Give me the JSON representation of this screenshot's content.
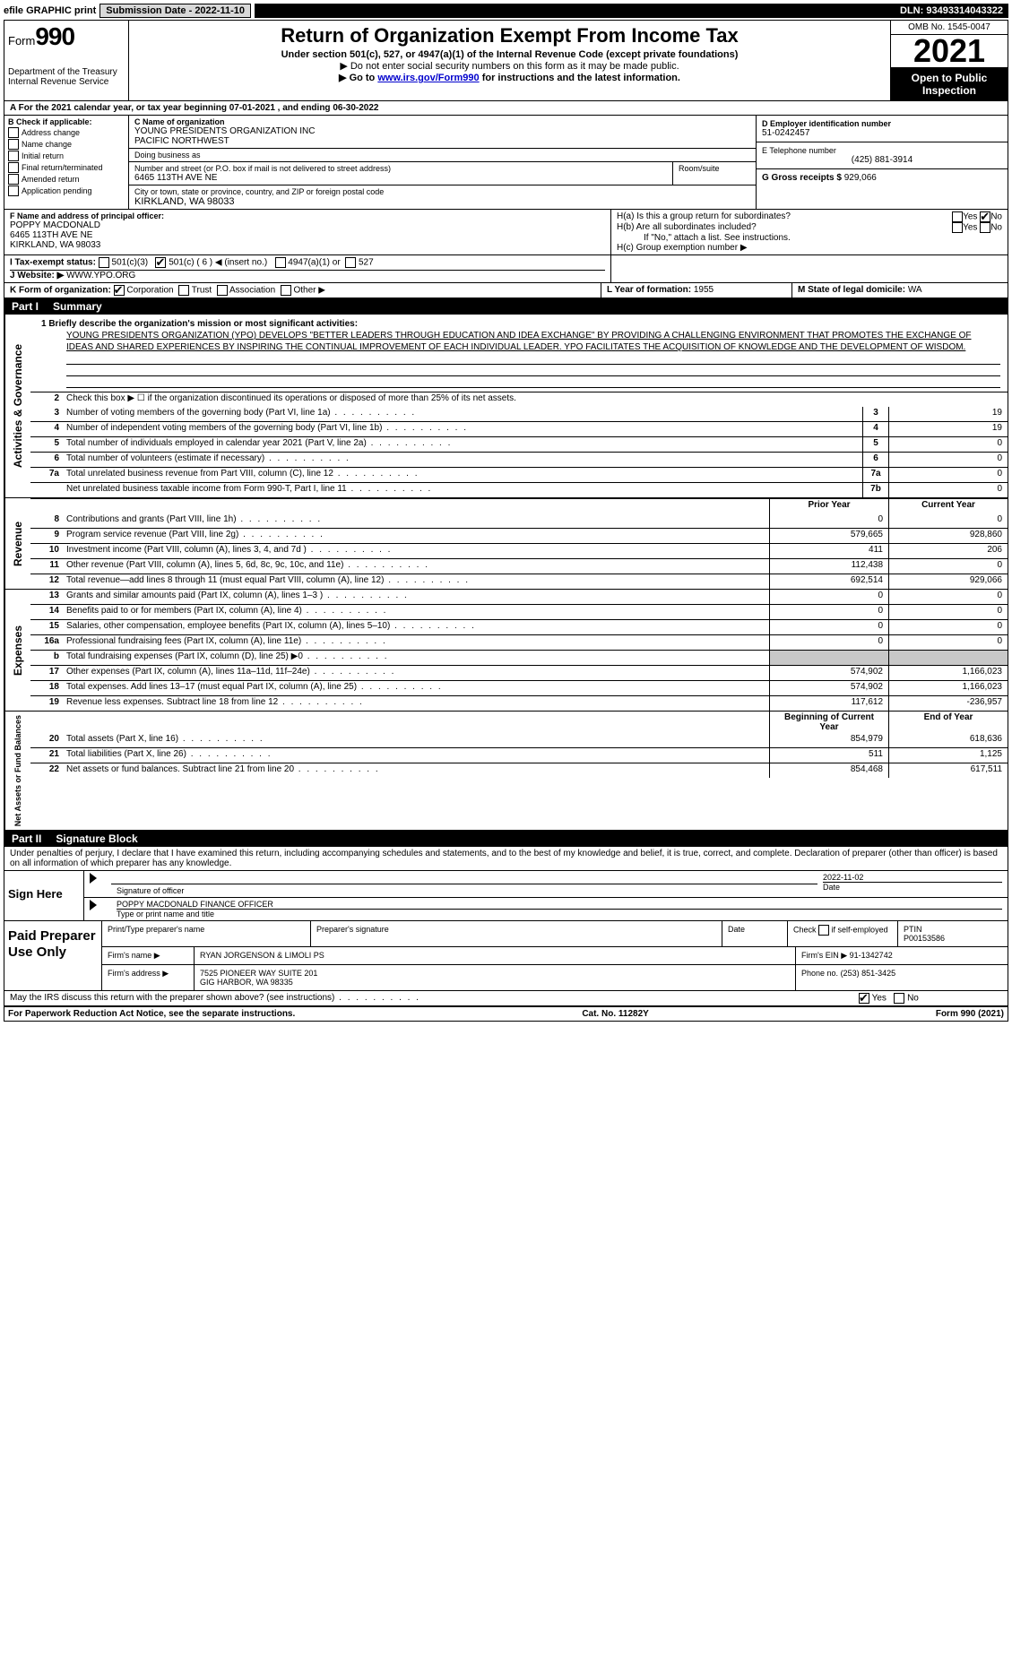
{
  "topbar": {
    "efile": "efile GRAPHIC print",
    "submission_label": "Submission Date - 2022-11-10",
    "dln": "DLN: 93493314043322"
  },
  "header": {
    "form_label": "Form",
    "form_number": "990",
    "title": "Return of Organization Exempt From Income Tax",
    "subtitle1": "Under section 501(c), 527, or 4947(a)(1) of the Internal Revenue Code (except private foundations)",
    "subtitle2": "▶ Do not enter social security numbers on this form as it may be made public.",
    "subtitle3_pre": "▶ Go to ",
    "subtitle3_link": "www.irs.gov/Form990",
    "subtitle3_post": " for instructions and the latest information.",
    "dept": "Department of the Treasury\nInternal Revenue Service",
    "omb": "OMB No. 1545-0047",
    "year": "2021",
    "open": "Open to Public Inspection"
  },
  "row_a": "A For the 2021 calendar year, or tax year beginning 07-01-2021    , and ending 06-30-2022",
  "box_b": {
    "title": "B Check if applicable:",
    "items": [
      "Address change",
      "Name change",
      "Initial return",
      "Final return/terminated",
      "Amended return",
      "Application pending"
    ]
  },
  "box_c": {
    "label_name": "C Name of organization",
    "name": "YOUNG PRESIDENTS ORGANIZATION INC\nPACIFIC NORTHWEST",
    "dba_label": "Doing business as",
    "street_label": "Number and street (or P.O. box if mail is not delivered to street address)",
    "room_label": "Room/suite",
    "street": "6465 113TH AVE NE",
    "city_label": "City or town, state or province, country, and ZIP or foreign postal code",
    "city": "KIRKLAND, WA  98033"
  },
  "box_d": {
    "label": "D Employer identification number",
    "value": "51-0242457"
  },
  "box_e": {
    "label": "E Telephone number",
    "value": "(425) 881-3914"
  },
  "box_g": {
    "label": "G Gross receipts $",
    "value": "929,066"
  },
  "box_f": {
    "label": "F Name and address of principal officer:",
    "name": "POPPY MACDONALD",
    "addr1": "6465 113TH AVE NE",
    "addr2": "KIRKLAND, WA  98033"
  },
  "box_h": {
    "a_label": "H(a)  Is this a group return for subordinates?",
    "b_label": "H(b)  Are all subordinates included?",
    "b_note": "If \"No,\" attach a list. See instructions.",
    "c_label": "H(c)  Group exemption number ▶",
    "yes": "Yes",
    "no": "No"
  },
  "row_i": {
    "label": "I  Tax-exempt status:",
    "opt1": "501(c)(3)",
    "opt2": "501(c) ( 6 ) ◀ (insert no.)",
    "opt3": "4947(a)(1) or",
    "opt4": "527"
  },
  "row_j": {
    "label": "J  Website: ▶",
    "value": "WWW.YPO.ORG"
  },
  "row_k": {
    "label": "K Form of organization:",
    "opts": [
      "Corporation",
      "Trust",
      "Association",
      "Other ▶"
    ]
  },
  "row_l": {
    "label": "L Year of formation:",
    "value": "1955"
  },
  "row_m": {
    "label": "M State of legal domicile:",
    "value": "WA"
  },
  "part1": {
    "num": "Part I",
    "title": "Summary"
  },
  "mission": {
    "label": "1  Briefly describe the organization's mission or most significant activities:",
    "text": "YOUNG PRESIDENTS ORGANIZATION (YPO) DEVELOPS \"BETTER LEADERS THROUGH EDUCATION AND IDEA EXCHANGE\" BY PROVIDING A CHALLENGING ENVIRONMENT THAT PROMOTES THE EXCHANGE OF IDEAS AND SHARED EXPERIENCES BY INSPIRING THE CONTINUAL IMPROVEMENT OF EACH INDIVIDUAL LEADER. YPO FACILITATES THE ACQUISITION OF KNOWLEDGE AND THE DEVELOPMENT OF WISDOM."
  },
  "governance": {
    "side": "Activities & Governance",
    "line2": "Check this box ▶ ☐ if the organization discontinued its operations or disposed of more than 25% of its net assets.",
    "rows": [
      {
        "n": "3",
        "label": "Number of voting members of the governing body (Part VI, line 1a)",
        "box": "3",
        "val": "19"
      },
      {
        "n": "4",
        "label": "Number of independent voting members of the governing body (Part VI, line 1b)",
        "box": "4",
        "val": "19"
      },
      {
        "n": "5",
        "label": "Total number of individuals employed in calendar year 2021 (Part V, line 2a)",
        "box": "5",
        "val": "0"
      },
      {
        "n": "6",
        "label": "Total number of volunteers (estimate if necessary)",
        "box": "6",
        "val": "0"
      },
      {
        "n": "7a",
        "label": "Total unrelated business revenue from Part VIII, column (C), line 12",
        "box": "7a",
        "val": "0"
      },
      {
        "n": "",
        "label": "Net unrelated business taxable income from Form 990-T, Part I, line 11",
        "box": "7b",
        "val": "0"
      }
    ]
  },
  "two_col_header": {
    "prior": "Prior Year",
    "current": "Current Year"
  },
  "revenue": {
    "side": "Revenue",
    "rows": [
      {
        "n": "8",
        "label": "Contributions and grants (Part VIII, line 1h)",
        "prior": "0",
        "curr": "0"
      },
      {
        "n": "9",
        "label": "Program service revenue (Part VIII, line 2g)",
        "prior": "579,665",
        "curr": "928,860"
      },
      {
        "n": "10",
        "label": "Investment income (Part VIII, column (A), lines 3, 4, and 7d )",
        "prior": "411",
        "curr": "206"
      },
      {
        "n": "11",
        "label": "Other revenue (Part VIII, column (A), lines 5, 6d, 8c, 9c, 10c, and 11e)",
        "prior": "112,438",
        "curr": "0"
      },
      {
        "n": "12",
        "label": "Total revenue—add lines 8 through 11 (must equal Part VIII, column (A), line 12)",
        "prior": "692,514",
        "curr": "929,066"
      }
    ]
  },
  "expenses": {
    "side": "Expenses",
    "rows": [
      {
        "n": "13",
        "label": "Grants and similar amounts paid (Part IX, column (A), lines 1–3 )",
        "prior": "0",
        "curr": "0"
      },
      {
        "n": "14",
        "label": "Benefits paid to or for members (Part IX, column (A), line 4)",
        "prior": "0",
        "curr": "0"
      },
      {
        "n": "15",
        "label": "Salaries, other compensation, employee benefits (Part IX, column (A), lines 5–10)",
        "prior": "0",
        "curr": "0"
      },
      {
        "n": "16a",
        "label": "Professional fundraising fees (Part IX, column (A), line 11e)",
        "prior": "0",
        "curr": "0"
      },
      {
        "n": "b",
        "label": "Total fundraising expenses (Part IX, column (D), line 25) ▶0",
        "prior": "",
        "curr": "",
        "shaded": true
      },
      {
        "n": "17",
        "label": "Other expenses (Part IX, column (A), lines 11a–11d, 11f–24e)",
        "prior": "574,902",
        "curr": "1,166,023"
      },
      {
        "n": "18",
        "label": "Total expenses. Add lines 13–17 (must equal Part IX, column (A), line 25)",
        "prior": "574,902",
        "curr": "1,166,023"
      },
      {
        "n": "19",
        "label": "Revenue less expenses. Subtract line 18 from line 12",
        "prior": "117,612",
        "curr": "-236,957"
      }
    ]
  },
  "netassets": {
    "side": "Net Assets or Fund Balances",
    "header": {
      "prior": "Beginning of Current Year",
      "current": "End of Year"
    },
    "rows": [
      {
        "n": "20",
        "label": "Total assets (Part X, line 16)",
        "prior": "854,979",
        "curr": "618,636"
      },
      {
        "n": "21",
        "label": "Total liabilities (Part X, line 26)",
        "prior": "511",
        "curr": "1,125"
      },
      {
        "n": "22",
        "label": "Net assets or fund balances. Subtract line 21 from line 20",
        "prior": "854,468",
        "curr": "617,511"
      }
    ]
  },
  "part2": {
    "num": "Part II",
    "title": "Signature Block"
  },
  "penalties": "Under penalties of perjury, I declare that I have examined this return, including accompanying schedules and statements, and to the best of my knowledge and belief, it is true, correct, and complete. Declaration of preparer (other than officer) is based on all information of which preparer has any knowledge.",
  "sign": {
    "left": "Sign Here",
    "sig_label": "Signature of officer",
    "date_label": "Date",
    "date": "2022-11-02",
    "name": "POPPY MACDONALD  FINANCE OFFICER",
    "name_label": "Type or print name and title"
  },
  "preparer": {
    "left": "Paid Preparer Use Only",
    "h1": "Print/Type preparer's name",
    "h2": "Preparer's signature",
    "h3": "Date",
    "h4_a": "Check",
    "h4_b": "if self-employed",
    "h5": "PTIN",
    "ptin": "P00153586",
    "firm_name_label": "Firm's name    ▶",
    "firm_name": "RYAN JORGENSON & LIMOLI PS",
    "firm_ein_label": "Firm's EIN ▶",
    "firm_ein": "91-1342742",
    "firm_addr_label": "Firm's address ▶",
    "firm_addr1": "7525 PIONEER WAY SUITE 201",
    "firm_addr2": "GIG HARBOR, WA  98335",
    "phone_label": "Phone no.",
    "phone": "(253) 851-3425"
  },
  "discuss": {
    "q": "May the IRS discuss this return with the preparer shown above? (see instructions)",
    "yes": "Yes",
    "no": "No"
  },
  "footer": {
    "left": "For Paperwork Reduction Act Notice, see the separate instructions.",
    "mid": "Cat. No. 11282Y",
    "right": "Form 990 (2021)"
  }
}
